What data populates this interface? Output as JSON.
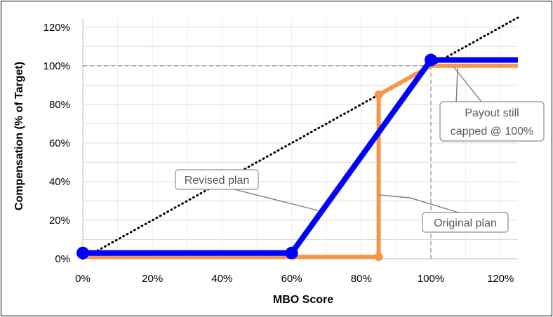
{
  "chart_data": {
    "type": "line",
    "xlabel": "MBO Score",
    "ylabel": "Compensation (% of Target)",
    "xlim": [
      0,
      125
    ],
    "ylim": [
      0,
      125
    ],
    "x_ticks": [
      "0%",
      "20%",
      "40%",
      "60%",
      "80%",
      "100%",
      "120%"
    ],
    "y_ticks": [
      "0%",
      "20%",
      "40%",
      "60%",
      "80%",
      "100%",
      "120%"
    ],
    "x_tick_values": [
      0,
      20,
      40,
      60,
      80,
      100,
      120
    ],
    "y_tick_values": [
      0,
      20,
      40,
      60,
      80,
      100,
      120
    ],
    "grid": true,
    "reference_lines": {
      "horizontal_dashed_at": 100,
      "vertical_dashed_at": 100
    },
    "series": [
      {
        "key": "diagonal",
        "style": "dotted",
        "color": "#000000",
        "points": [
          [
            0,
            0
          ],
          [
            125,
            125
          ]
        ]
      },
      {
        "key": "original",
        "color": "#f79646",
        "points": [
          [
            0,
            1
          ],
          [
            85,
            1
          ],
          [
            85,
            85
          ],
          [
            100,
            100
          ],
          [
            125,
            100
          ]
        ],
        "markers": [
          [
            85,
            85
          ],
          [
            85,
            1
          ]
        ]
      },
      {
        "key": "revised",
        "color": "#0000ff",
        "points": [
          [
            0,
            3
          ],
          [
            60,
            3
          ],
          [
            100,
            103
          ],
          [
            125,
            103
          ]
        ],
        "markers": [
          [
            0,
            3
          ],
          [
            60,
            3
          ],
          [
            100,
            103
          ]
        ]
      }
    ],
    "annotations": {
      "revised": "Revised plan",
      "original": "Original plan",
      "cap_line1": "Payout still",
      "cap_line2": "capped @ 100%"
    }
  }
}
